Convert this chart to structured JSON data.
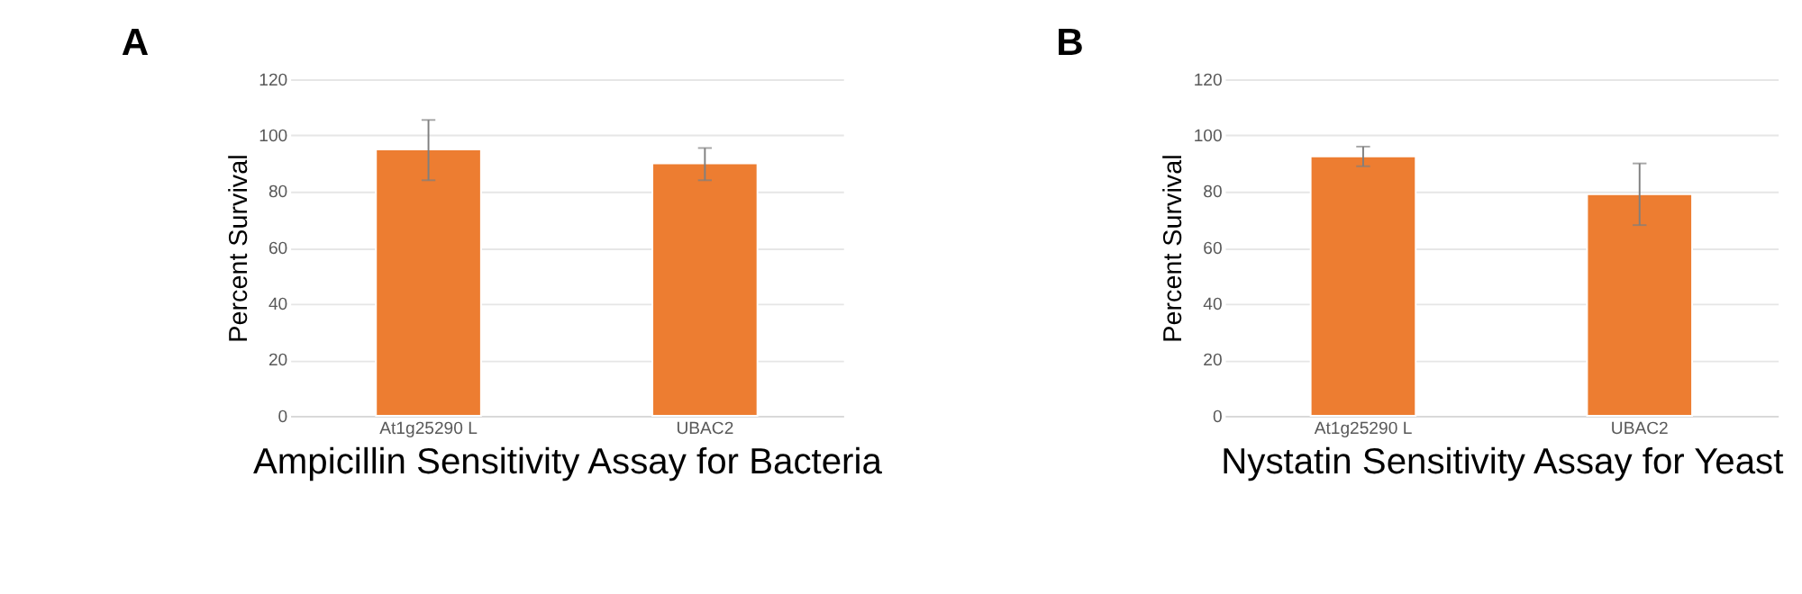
{
  "chart_data": [
    {
      "type": "bar",
      "title": "A",
      "xlabel": "Ampicillin Sensitivity Assay for Bacteria",
      "ylabel": "Percent Survival",
      "categories": [
        "At1g25290 L",
        "UBAC2"
      ],
      "values": [
        95,
        90
      ],
      "color": "#ed7d31",
      "errors": [
        [
          84,
          105.5
        ],
        [
          84,
          95.5
        ]
      ],
      "ylim": [
        0,
        120
      ],
      "yticks": [
        0,
        20,
        40,
        60,
        80,
        100,
        120
      ],
      "grid": "y"
    },
    {
      "type": "bar",
      "title": "B",
      "xlabel": "Nystatin Sensitivity Assay for Yeast",
      "ylabel": "Percent Survival",
      "categories": [
        "At1g25290 L",
        "UBAC2"
      ],
      "values": [
        92.5,
        79
      ],
      "color": "#ed7d31",
      "errors": [
        [
          89,
          96
        ],
        [
          68,
          90
        ]
      ],
      "ylim": [
        0,
        120
      ],
      "yticks": [
        0,
        20,
        40,
        60,
        80,
        100,
        120
      ],
      "grid": "y"
    }
  ]
}
